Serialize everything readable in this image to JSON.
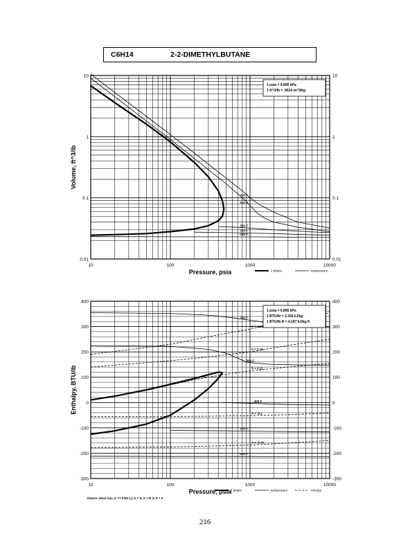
{
  "header": {
    "formula": "C6H14",
    "name": "2-2-DIMETHYLBUTANE"
  },
  "page_number": "216",
  "chart_data": [
    {
      "type": "line",
      "xscale": "log",
      "yscale": "log",
      "xlabel": "Pressure,  psia",
      "ylabel": "Volume, ft^3/lb",
      "xlim": [
        10,
        10000
      ],
      "ylim": [
        0.01,
        10
      ],
      "grid": true,
      "x_ticks": [
        "10",
        "100",
        "1000",
        "10000"
      ],
      "y_ticks": [
        "0.01",
        "0.1",
        "1",
        "10"
      ],
      "y_ticks_right": [
        "0.01",
        "0.1",
        "1",
        "10"
      ],
      "conversion_box": [
        "1 psia = 6.895 kPa",
        "1 ft^3/lb = .0624 m^3/kg"
      ],
      "legend": [
        "2 phase",
        "temperature"
      ],
      "two_phase_envelope": {
        "x": [
          10,
          20,
          50,
          100,
          200,
          300,
          400,
          450,
          470,
          450,
          400,
          300,
          200,
          100,
          50,
          20,
          10
        ],
        "y": [
          6.8,
          3.6,
          1.6,
          0.82,
          0.38,
          0.22,
          0.13,
          0.09,
          0.065,
          0.05,
          0.042,
          0.035,
          0.031,
          0.028,
          0.026,
          0.025,
          0.0245
        ]
      },
      "isotherms": [
        {
          "label": "700 F",
          "x": [
            10,
            20,
            50,
            100,
            200,
            500,
            800,
            1000,
            1300,
            2000,
            4000,
            10000
          ],
          "y": [
            10.5,
            5.3,
            2.15,
            1.08,
            0.54,
            0.21,
            0.13,
            0.1,
            0.078,
            0.058,
            0.04,
            0.032
          ]
        },
        {
          "label": "500 F",
          "x": [
            10,
            20,
            50,
            100,
            200,
            500,
            800,
            1000,
            1200,
            1500,
            2000,
            4000,
            10000
          ],
          "y": [
            9.0,
            4.5,
            1.8,
            0.9,
            0.44,
            0.17,
            0.1,
            0.075,
            0.058,
            0.047,
            0.04,
            0.033,
            0.028
          ]
        },
        {
          "label": "300 F",
          "x": [
            400,
            700,
            1000,
            2000,
            5000,
            10000
          ],
          "y": [
            0.034,
            0.033,
            0.032,
            0.03,
            0.028,
            0.027
          ]
        },
        {
          "label": "100 F",
          "x": [
            200,
            500,
            1000,
            2000,
            5000,
            10000
          ],
          "y": [
            0.0275,
            0.027,
            0.0265,
            0.026,
            0.025,
            0.0245
          ]
        },
        {
          "label": "-100 F",
          "x": [
            10,
            100,
            1000,
            2000,
            5000,
            10000
          ],
          "y": [
            0.0232,
            0.0231,
            0.023,
            0.0229,
            0.0227,
            0.0225
          ]
        }
      ]
    },
    {
      "type": "line",
      "xscale": "log",
      "yscale": "linear",
      "xlabel": "Pressure,  psia",
      "ylabel": "Enthalpy, BTU/lb",
      "xlim": [
        10,
        10000
      ],
      "ylim": [
        -300,
        400
      ],
      "grid": true,
      "x_ticks": [
        "10",
        "100",
        "1000",
        "10000"
      ],
      "y_ticks": [
        "-300",
        "-200",
        "-100",
        "0",
        "100",
        "200",
        "300",
        "400"
      ],
      "y_ticks_right": [
        "-300",
        "-200",
        "-100",
        "0",
        "100",
        "200",
        "300",
        "400"
      ],
      "conversion_box": [
        "1 psia = 6.895 kPa",
        "1 BTU/lb = 2.326 kJ/kg",
        "1 BTU/lb R = 4.187 kJ/kg K"
      ],
      "legend": [
        "2 phase",
        "temperature",
        "entropy"
      ],
      "footnote": "Datum: Ideal Gas @ 77 F/25 C), H = 0, S + R ln P = 0",
      "two_phase_envelope": {
        "x": [
          10,
          20,
          50,
          100,
          200,
          300,
          400,
          450,
          400,
          300,
          200,
          100,
          50,
          20,
          10
        ],
        "y": [
          10,
          25,
          50,
          72,
          95,
          110,
          120,
          118,
          95,
          55,
          10,
          -50,
          -85,
          -112,
          -125
        ]
      },
      "isotherms": [
        {
          "label": "700 F",
          "x": [
            10,
            100,
            300,
            600,
            1000,
            2000,
            5000,
            10000
          ],
          "y": [
            355,
            352,
            345,
            335,
            325,
            312,
            303,
            296
          ]
        },
        {
          "label": "500 F",
          "x": [
            10,
            100,
            300,
            500,
            700,
            900,
            1200,
            2000,
            5000,
            10000
          ],
          "y": [
            225,
            222,
            210,
            195,
            175,
            160,
            155,
            150,
            148,
            148
          ]
        },
        {
          "label": "300 F",
          "x": [
            450,
            800,
            1500,
            3000,
            10000
          ],
          "y": [
            0,
            -2,
            -5,
            -8,
            -10
          ]
        },
        {
          "label": "100 F",
          "x": [
            100,
            500,
            1000,
            3000,
            10000
          ],
          "y": [
            -110,
            -112,
            -113,
            -115,
            -116
          ]
        },
        {
          "label": "-100 F",
          "x": [
            10,
            100,
            1000,
            3000,
            10000
          ],
          "y": [
            -212,
            -213,
            -213,
            -214,
            -214
          ]
        }
      ],
      "entropy_lines": [
        {
          "label": "S = 0.28",
          "x": [
            10,
            100,
            300,
            1000,
            3000,
            10000
          ],
          "y": [
            190,
            230,
            260,
            290,
            320,
            355
          ]
        },
        {
          "label": "S = 0.16",
          "x": [
            10,
            100,
            300,
            1000,
            3000,
            10000
          ],
          "y": [
            140,
            165,
            180,
            200,
            225,
            250
          ]
        },
        {
          "label": "S = 0.11",
          "x": [
            100,
            200,
            450,
            1000,
            3000,
            10000
          ],
          "y": [
            70,
            90,
            110,
            125,
            140,
            155
          ]
        },
        {
          "label": "S = -0.1",
          "x": [
            10,
            100,
            300,
            1000,
            3000,
            10000
          ],
          "y": [
            -55,
            -55,
            -54,
            -52,
            -48,
            -42
          ]
        },
        {
          "label": "S = -0.31",
          "x": [
            10,
            100,
            300,
            1000,
            3000,
            10000
          ],
          "y": [
            -178,
            -175,
            -172,
            -168,
            -160,
            -150
          ]
        }
      ]
    }
  ]
}
